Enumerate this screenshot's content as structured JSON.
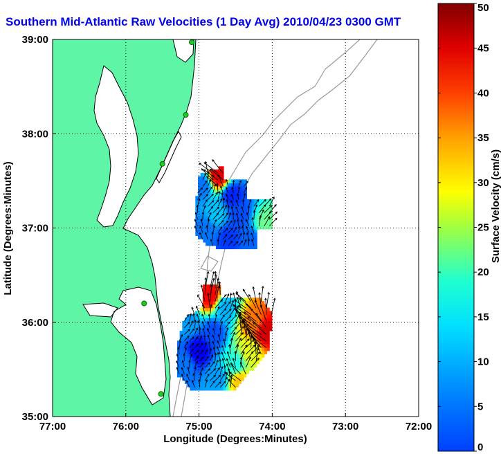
{
  "title": "Southern Mid-Atlantic Raw Velocities (1 Day Avg) 2010/04/23 0300 GMT",
  "colors": {
    "land": "#5ef5a6",
    "water": "#ffffff",
    "coast": "#000000",
    "bathymetry": "#999999",
    "title": "#0000ee",
    "station": "#22cc22"
  },
  "chart_data": {
    "type": "heatmap",
    "xlabel": "Longitude (Degrees:Minutes)",
    "ylabel": "Latitude (Degrees:Minutes)",
    "xlim": [
      -77,
      -72
    ],
    "ylim": [
      35,
      39
    ],
    "x_ticks": [
      {
        "value": -77,
        "label": "77:00"
      },
      {
        "value": -76,
        "label": "76:00"
      },
      {
        "value": -75,
        "label": "75:00"
      },
      {
        "value": -74,
        "label": "74:00"
      },
      {
        "value": -73,
        "label": "73:00"
      },
      {
        "value": -72,
        "label": "72:00"
      }
    ],
    "y_ticks": [
      {
        "value": 35,
        "label": "35:00"
      },
      {
        "value": 36,
        "label": "36:00"
      },
      {
        "value": 37,
        "label": "37:00"
      },
      {
        "value": 38,
        "label": "38:00"
      },
      {
        "value": 39,
        "label": "39:00"
      }
    ],
    "grid": true,
    "colorbar": {
      "label": "Surface Velocity (cm/s)",
      "min": 0,
      "max": 50,
      "ticks": [
        0,
        5,
        10,
        15,
        20,
        25,
        30,
        35,
        40,
        45,
        50
      ],
      "colormap": "jet"
    },
    "stations": [
      {
        "lon": -75.1,
        "lat": 38.97
      },
      {
        "lon": -75.18,
        "lat": 38.2
      },
      {
        "lon": -75.5,
        "lat": 37.68
      },
      {
        "lon": -75.75,
        "lat": 36.2
      },
      {
        "lon": -75.52,
        "lat": 35.24
      }
    ],
    "regions": [
      {
        "name": "",
        "lon_range": [
          -75.05,
          -74.0
        ],
        "lat_range": [
          36.78,
          37.65
        ],
        "polygon": [
          [
            -74.65,
            37.65
          ],
          [
            -74.65,
            37.5
          ],
          [
            -74.35,
            37.5
          ],
          [
            -74.35,
            37.3
          ],
          [
            -74.0,
            37.3
          ],
          [
            -74.0,
            36.98
          ],
          [
            -74.2,
            36.98
          ],
          [
            -74.2,
            36.78
          ],
          [
            -74.7,
            36.78
          ],
          [
            -74.9,
            36.83
          ],
          [
            -75.05,
            36.93
          ],
          [
            -75.05,
            37.2
          ],
          [
            -75.0,
            37.55
          ],
          [
            -74.85,
            37.62
          ]
        ],
        "field": [
          {
            "lon": -74.73,
            "lat": 37.56,
            "v": 45
          },
          {
            "lon": -74.95,
            "lat": 37.45,
            "v": 12
          },
          {
            "lon": -74.55,
            "lat": 37.35,
            "v": 8
          },
          {
            "lon": -74.45,
            "lat": 37.15,
            "v": 10
          },
          {
            "lon": -74.75,
            "lat": 37.15,
            "v": 16
          },
          {
            "lon": -74.9,
            "lat": 36.98,
            "v": 12
          },
          {
            "lon": -74.1,
            "lat": 37.05,
            "v": 24
          },
          {
            "lon": -74.3,
            "lat": 36.88,
            "v": 11
          },
          {
            "lon": -74.6,
            "lat": 36.9,
            "v": 9
          }
        ]
      },
      {
        "name": "",
        "lon_range": [
          -75.3,
          -74.0
        ],
        "lat_range": [
          35.28,
          36.4
        ],
        "polygon": [
          [
            -74.95,
            36.4
          ],
          [
            -74.7,
            36.4
          ],
          [
            -74.7,
            36.25
          ],
          [
            -74.15,
            36.25
          ],
          [
            -74.0,
            36.1
          ],
          [
            -74.05,
            35.7
          ],
          [
            -74.2,
            35.55
          ],
          [
            -74.4,
            35.4
          ],
          [
            -74.5,
            35.28
          ],
          [
            -75.1,
            35.28
          ],
          [
            -75.3,
            35.45
          ],
          [
            -75.3,
            35.75
          ],
          [
            -75.2,
            36.05
          ],
          [
            -74.95,
            36.15
          ]
        ],
        "field": [
          {
            "lon": -74.85,
            "lat": 36.28,
            "v": 44
          },
          {
            "lon": -74.65,
            "lat": 36.15,
            "v": 15
          },
          {
            "lon": -74.25,
            "lat": 36.0,
            "v": 38
          },
          {
            "lon": -74.1,
            "lat": 35.9,
            "v": 46
          },
          {
            "lon": -74.3,
            "lat": 35.7,
            "v": 30
          },
          {
            "lon": -74.5,
            "lat": 35.55,
            "v": 20
          },
          {
            "lon": -74.45,
            "lat": 35.38,
            "v": 34
          },
          {
            "lon": -75.0,
            "lat": 35.7,
            "v": 6
          },
          {
            "lon": -75.2,
            "lat": 35.55,
            "v": 12
          },
          {
            "lon": -74.8,
            "lat": 35.9,
            "v": 10
          },
          {
            "lon": -74.75,
            "lat": 35.4,
            "v": 14
          },
          {
            "lon": -75.15,
            "lat": 36.0,
            "v": 14
          }
        ]
      }
    ]
  }
}
